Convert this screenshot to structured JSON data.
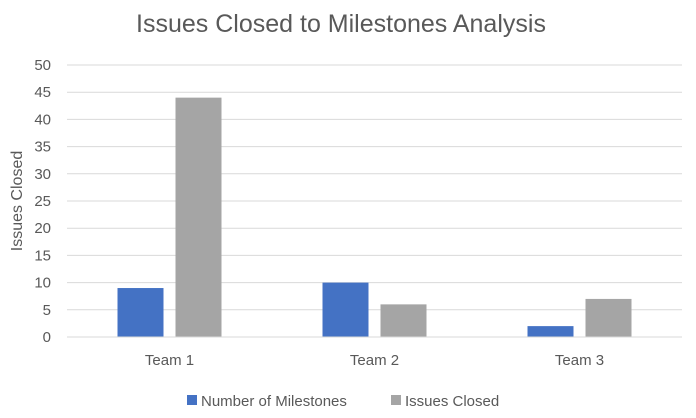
{
  "chart_data": {
    "type": "bar",
    "title": "Issues Closed to Milestones Analysis",
    "xlabel": "",
    "ylabel": "Issues Closed",
    "categories": [
      "Team 1",
      "Team 2",
      "Team 3"
    ],
    "ylim": [
      0,
      50
    ],
    "yticks": [
      "0",
      "5",
      "10",
      "15",
      "20",
      "25",
      "30",
      "35",
      "40",
      "45",
      "50"
    ],
    "grid": true,
    "legend_position": "bottom",
    "series": [
      {
        "name": "Number of Milestones",
        "values": [
          9,
          10,
          2
        ],
        "color": "#4472C4"
      },
      {
        "name": "Issues Closed",
        "values": [
          44,
          6,
          7
        ],
        "color": "#A5A5A5"
      }
    ]
  }
}
